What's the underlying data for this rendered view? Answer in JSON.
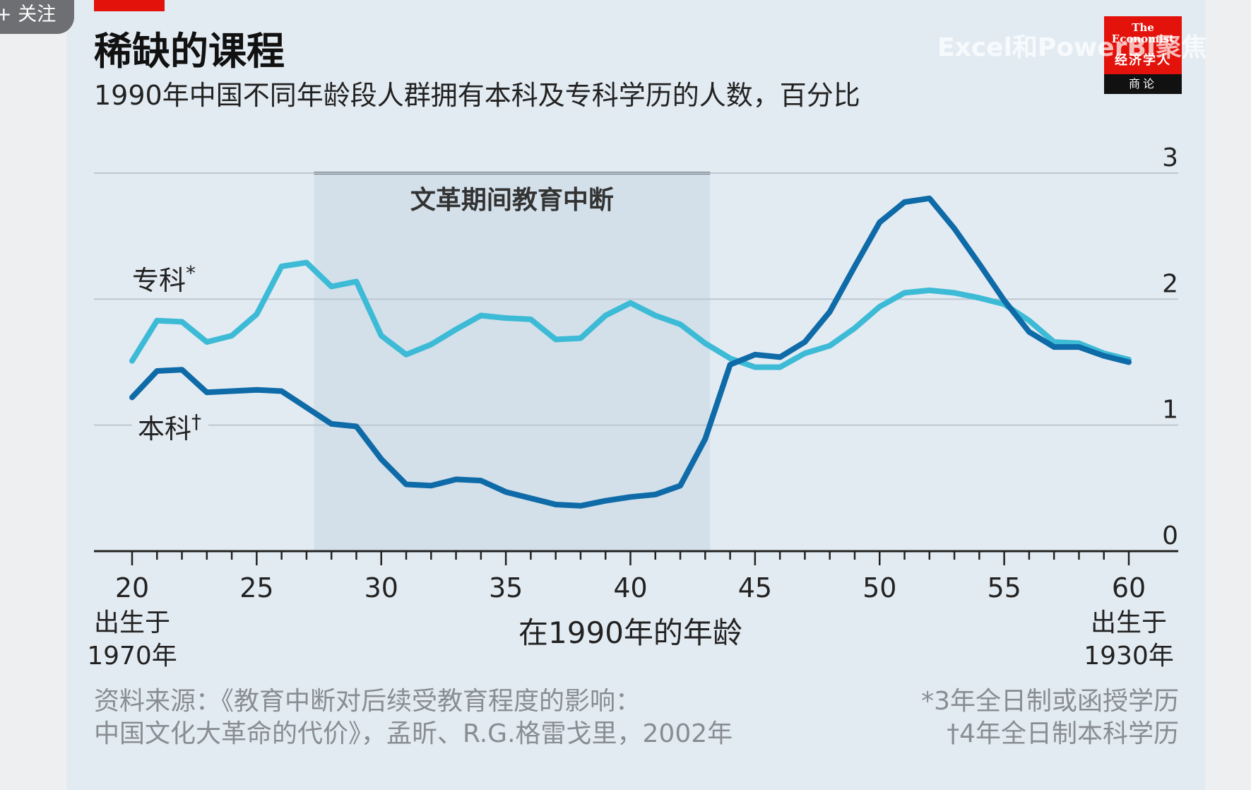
{
  "overlay": {
    "follow_label": "+ 关注",
    "watermark": "Excel和PowerBI聚焦"
  },
  "logo": {
    "top": "The Economist",
    "middle": "经济学人",
    "bottom": "商论"
  },
  "colors": {
    "benke": "#0e6ba8",
    "zhuanke": "#3dbbd6",
    "shade": "#d3e0ea",
    "accent_red": "#e3120b"
  },
  "chart_data": {
    "type": "line",
    "title": "稀缺的课程",
    "subtitle": "1990年中国不同年龄段人群拥有本科及专科学历的人数，百分比",
    "xlabel": "在1990年的年龄",
    "x_range": [
      20,
      60
    ],
    "ylim": [
      0,
      3
    ],
    "x_ticks": [
      20,
      25,
      30,
      35,
      40,
      45,
      50,
      55,
      60
    ],
    "y_ticks": [
      0,
      1,
      2,
      3
    ],
    "x_start_label": [
      "出生于",
      "1970年"
    ],
    "x_end_label": [
      "出生于",
      "1930年"
    ],
    "grid": true,
    "annotation": {
      "label": "文革期间教育中断",
      "x_from": 27.3,
      "x_to": 43.2
    },
    "series": [
      {
        "name": "专科",
        "marker": "*",
        "color": "#3dbbd6",
        "x": [
          20,
          21,
          22,
          23,
          24,
          25,
          26,
          27,
          28,
          29,
          30,
          31,
          32,
          33,
          34,
          35,
          36,
          37,
          38,
          39,
          40,
          41,
          42,
          43,
          44,
          45,
          46,
          47,
          48,
          49,
          50,
          51,
          52,
          53,
          54,
          55,
          56,
          57,
          58,
          59,
          60
        ],
        "values": [
          1.51,
          1.83,
          1.82,
          1.66,
          1.71,
          1.88,
          2.26,
          2.29,
          2.1,
          2.14,
          1.71,
          1.56,
          1.64,
          1.76,
          1.87,
          1.85,
          1.84,
          1.68,
          1.69,
          1.87,
          1.97,
          1.87,
          1.8,
          1.65,
          1.53,
          1.46,
          1.46,
          1.57,
          1.63,
          1.77,
          1.94,
          2.05,
          2.07,
          2.05,
          2.01,
          1.96,
          1.83,
          1.66,
          1.65,
          1.57,
          1.52
        ]
      },
      {
        "name": "本科",
        "marker": "†",
        "color": "#0e6ba8",
        "x": [
          20,
          21,
          22,
          23,
          24,
          25,
          26,
          27,
          28,
          29,
          30,
          31,
          32,
          33,
          34,
          35,
          36,
          37,
          38,
          39,
          40,
          41,
          42,
          43,
          44,
          45,
          46,
          47,
          48,
          49,
          50,
          51,
          52,
          53,
          54,
          55,
          56,
          57,
          58,
          59,
          60
        ],
        "values": [
          1.22,
          1.43,
          1.44,
          1.26,
          1.27,
          1.28,
          1.27,
          1.14,
          1.01,
          0.99,
          0.73,
          0.53,
          0.52,
          0.57,
          0.56,
          0.47,
          0.42,
          0.37,
          0.36,
          0.4,
          0.43,
          0.45,
          0.52,
          0.89,
          1.48,
          1.56,
          1.54,
          1.66,
          1.9,
          2.26,
          2.61,
          2.77,
          2.8,
          2.56,
          2.28,
          1.99,
          1.74,
          1.62,
          1.62,
          1.55,
          1.5
        ]
      }
    ]
  },
  "footer": {
    "source_line1": "资料来源：《教育中断对后续受教育程度的影响：",
    "source_line2": "中国文化大革命的代价》，孟昕、R.G.格雷戈里，2002年",
    "note_line1": "*3年全日制或函授学历",
    "note_line2": "†4年全日制本科学历"
  }
}
